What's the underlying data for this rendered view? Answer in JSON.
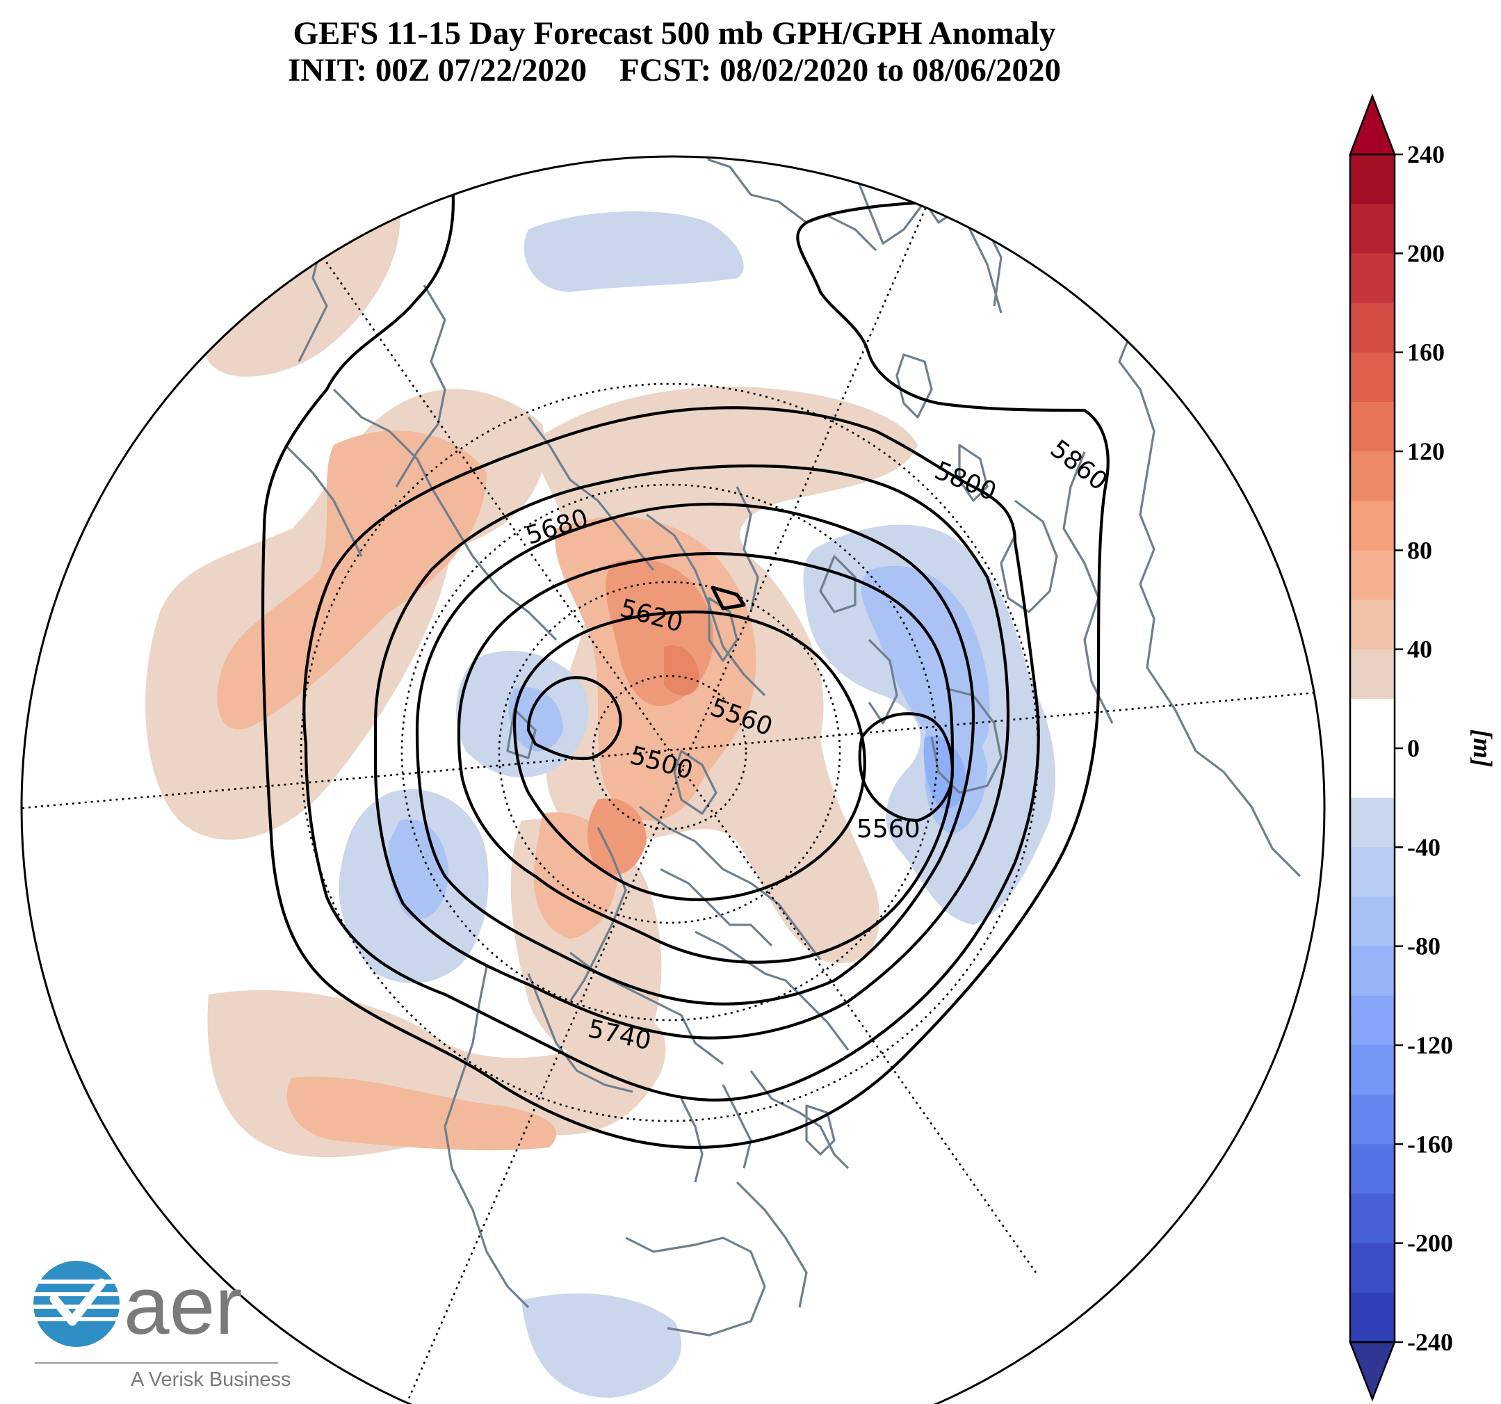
{
  "title": {
    "line1": "GEFS 11-15 Day Forecast 500 mb GPH/GPH Anomaly",
    "line2": "INIT: 00Z 07/22/2020    FCST: 08/02/2020 to 08/06/2020"
  },
  "colorbar": {
    "unit": "[m]",
    "tick_labels": [
      "240",
      "200",
      "160",
      "120",
      "80",
      "40",
      "0",
      "-40",
      "-80",
      "-120",
      "-160",
      "-200",
      "-240"
    ],
    "tick_values": [
      240,
      200,
      160,
      120,
      80,
      40,
      0,
      -40,
      -80,
      -120,
      -160,
      -200,
      -240
    ],
    "range": [
      -240,
      240
    ],
    "band_step": 20,
    "band_colors_top_to_bottom": [
      "#a50f26",
      "#b52331",
      "#c5353a",
      "#d34a42",
      "#de5f4c",
      "#e77558",
      "#ee8a66",
      "#f39f79",
      "#f5b190",
      "#f1c3a8",
      "#e9d2c4",
      "#ffffff",
      "#ffffff",
      "#c9d7ec",
      "#b9cdf2",
      "#a8c1f5",
      "#97b4f8",
      "#86a6fa",
      "#7597f7",
      "#6486ef",
      "#5474e6",
      "#4661d8",
      "#3b4ec8",
      "#3140b8"
    ],
    "over_color": "#a50026",
    "under_color": "#313695"
  },
  "contours": {
    "interval_m": 60,
    "labels": [
      "5860",
      "5800",
      "5680",
      "5620",
      "5560",
      "5500",
      "5560",
      "5740"
    ]
  },
  "logo": {
    "name": "aer",
    "tagline": "A Verisk Business"
  },
  "colors": {
    "coastline": "#6e7f8f",
    "contour": "#000000",
    "positive_light": "#ecd5c6",
    "positive_mid": "#f2b99c",
    "positive_strong": "#ee9a78",
    "negative_light": "#c9d6ec",
    "negative_mid": "#aac3f4",
    "negative_strong": "#8fb0f8"
  }
}
